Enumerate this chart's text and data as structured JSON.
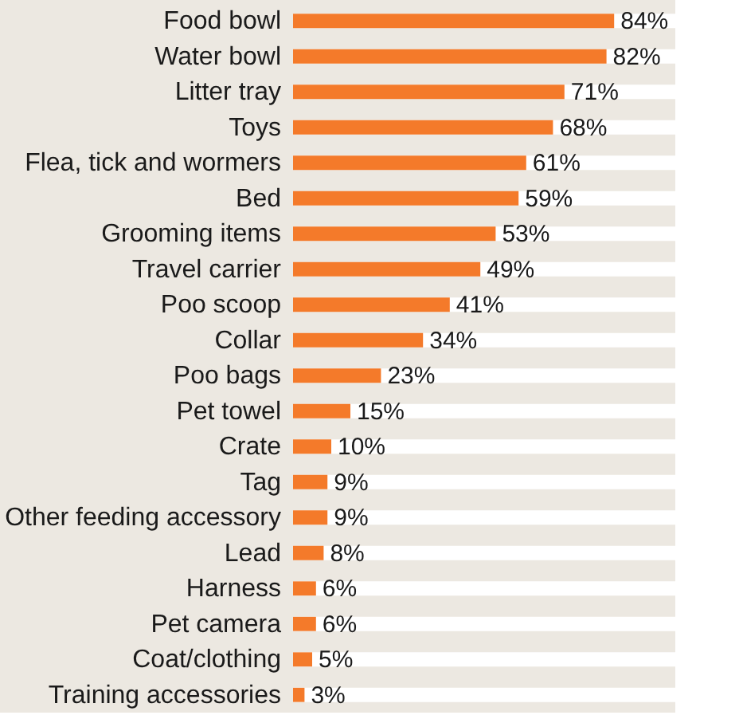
{
  "chart_data": {
    "type": "bar",
    "orientation": "horizontal",
    "categories": [
      "Food bowl",
      "Water bowl",
      "Litter tray",
      "Toys",
      "Flea, tick and wormers",
      "Bed",
      "Grooming items",
      "Travel carrier",
      "Poo scoop",
      "Collar",
      "Poo bags",
      "Pet towel",
      "Crate",
      "Tag",
      "Other feeding accessory",
      "Lead",
      "Harness",
      "Pet camera",
      "Coat/clothing",
      "Training accessories"
    ],
    "values": [
      84,
      82,
      71,
      68,
      61,
      59,
      53,
      49,
      41,
      34,
      23,
      15,
      10,
      9,
      9,
      8,
      6,
      6,
      5,
      3
    ],
    "value_labels": [
      "84%",
      "82%",
      "71%",
      "68%",
      "61%",
      "59%",
      "53%",
      "49%",
      "41%",
      "34%",
      "23%",
      "15%",
      "10%",
      "9%",
      "9%",
      "8%",
      "6%",
      "6%",
      "5%",
      "3%"
    ],
    "color": "#f47a2a",
    "xlim": [
      0,
      100
    ],
    "grid": false,
    "tick_labels": "y"
  }
}
